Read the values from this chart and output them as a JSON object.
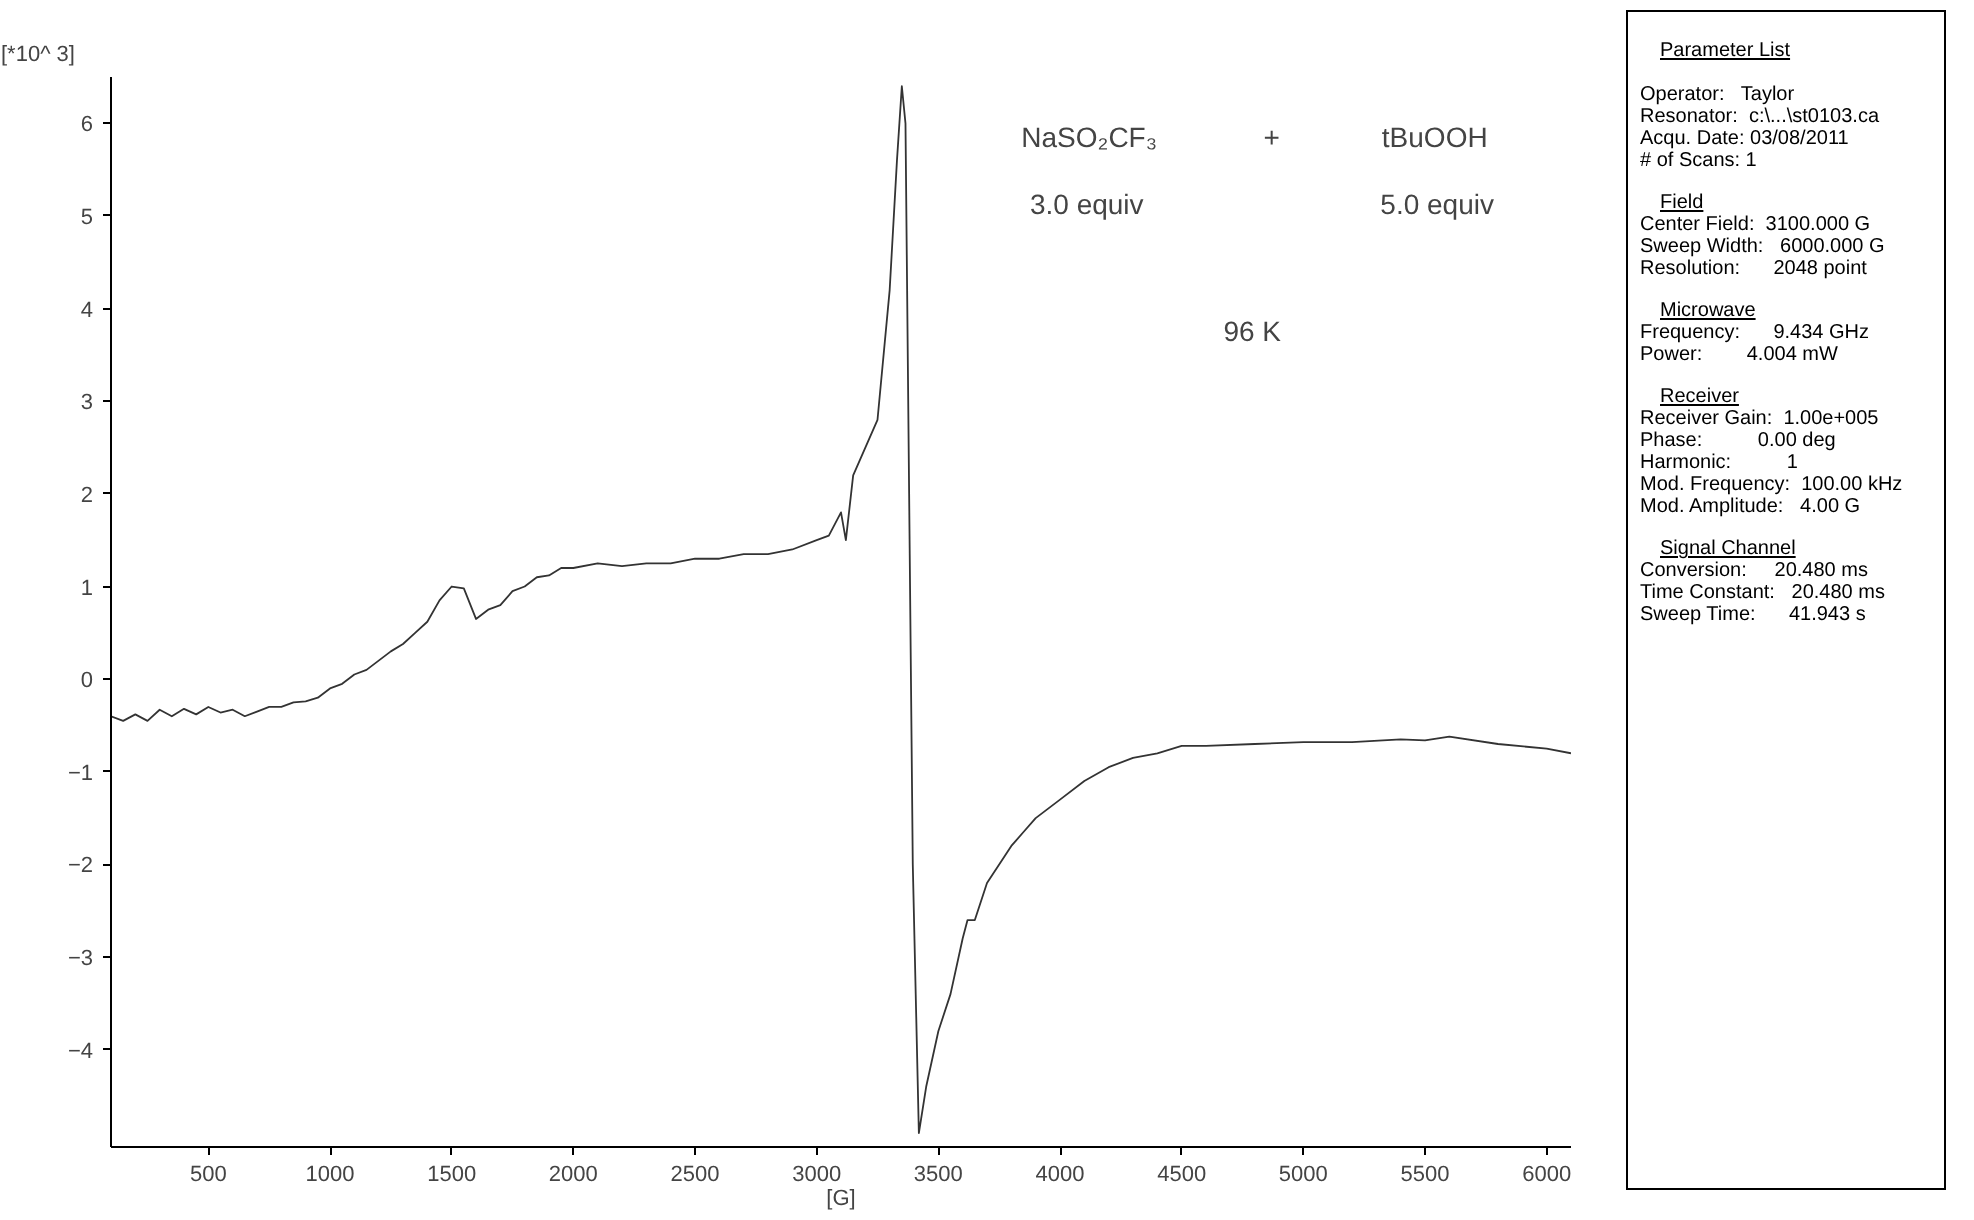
{
  "chart_data": {
    "type": "line",
    "xlabel": "[G]",
    "ylabel": "[*10^ 3]",
    "x": [
      100,
      150,
      200,
      250,
      300,
      350,
      400,
      450,
      500,
      550,
      600,
      650,
      700,
      750,
      800,
      850,
      900,
      950,
      1000,
      1050,
      1100,
      1150,
      1200,
      1250,
      1300,
      1350,
      1400,
      1450,
      1500,
      1550,
      1600,
      1650,
      1700,
      1750,
      1800,
      1850,
      1900,
      1950,
      2000,
      2100,
      2200,
      2300,
      2400,
      2500,
      2600,
      2700,
      2800,
      2900,
      3000,
      3050,
      3100,
      3120,
      3150,
      3200,
      3250,
      3300,
      3330,
      3350,
      3365,
      3380,
      3395,
      3420,
      3450,
      3500,
      3550,
      3600,
      3620,
      3650,
      3700,
      3750,
      3800,
      3850,
      3900,
      3950,
      4000,
      4100,
      4200,
      4300,
      4400,
      4500,
      4600,
      4800,
      5000,
      5200,
      5400,
      5500,
      5600,
      5800,
      6000,
      6100
    ],
    "series": [
      {
        "color": "#333333",
        "values": [
          -0.4,
          -0.45,
          -0.38,
          -0.45,
          -0.33,
          -0.4,
          -0.32,
          -0.38,
          -0.3,
          -0.36,
          -0.33,
          -0.4,
          -0.35,
          -0.3,
          -0.3,
          -0.25,
          -0.24,
          -0.2,
          -0.1,
          -0.05,
          0.05,
          0.1,
          0.2,
          0.3,
          0.38,
          0.5,
          0.62,
          0.85,
          1.0,
          0.98,
          0.65,
          0.75,
          0.8,
          0.95,
          1.0,
          1.1,
          1.12,
          1.2,
          1.2,
          1.25,
          1.22,
          1.25,
          1.25,
          1.3,
          1.3,
          1.35,
          1.35,
          1.4,
          1.5,
          1.55,
          1.8,
          1.5,
          2.2,
          2.5,
          2.8,
          4.2,
          5.6,
          6.4,
          6.0,
          2.0,
          -2.0,
          -4.9,
          -4.4,
          -3.8,
          -3.4,
          -2.8,
          -2.6,
          -2.6,
          -2.2,
          -2.0,
          -1.8,
          -1.65,
          -1.5,
          -1.4,
          -1.3,
          -1.1,
          -0.95,
          -0.85,
          -0.8,
          -0.72,
          -0.72,
          -0.7,
          -0.68,
          -0.68,
          -0.65,
          -0.66,
          -0.62,
          -0.7,
          -0.75,
          -0.8
        ]
      }
    ],
    "xlim": [
      100,
      6100
    ],
    "ylim": [
      -5.05,
      6.5
    ],
    "xticks": [
      500,
      1000,
      1500,
      2000,
      2500,
      3000,
      3500,
      4000,
      4500,
      5000,
      5500,
      6000
    ],
    "yticks": [
      -4,
      -3,
      -2,
      -1,
      0,
      1,
      2,
      3,
      4,
      5,
      6
    ],
    "grid": false,
    "annotations": [
      "NaSO₂CF₃",
      "+",
      "tBuOOH",
      "3.0 equiv",
      "5.0 equiv",
      "96 K",
      "Parameter List\n\nOperator:   Taylor\nResonator:  c:\\...\\st0103.ca\nAcqu. Date: 03/08/2011\n# of Scans: 1",
      "Field\nCenter Field:  3100.000 G\nSweep Width:   6000.000 G\nResolution:      2048 point",
      "Microwave\nFrequency:      9.434 GHz\nPower:        4.004 mW",
      "Receiver\nReceiver Gain:  1.00e+005\nPhase:          0.00 deg\nHarmonic:          1\nMod. Frequency:  100.00 kHz\nMod. Amplitude:   4.00 G",
      "Signal Channel\nConversion:     20.480 ms\nTime Constant:   20.480 ms\nSweep Time:      41.943 s"
    ]
  }
}
